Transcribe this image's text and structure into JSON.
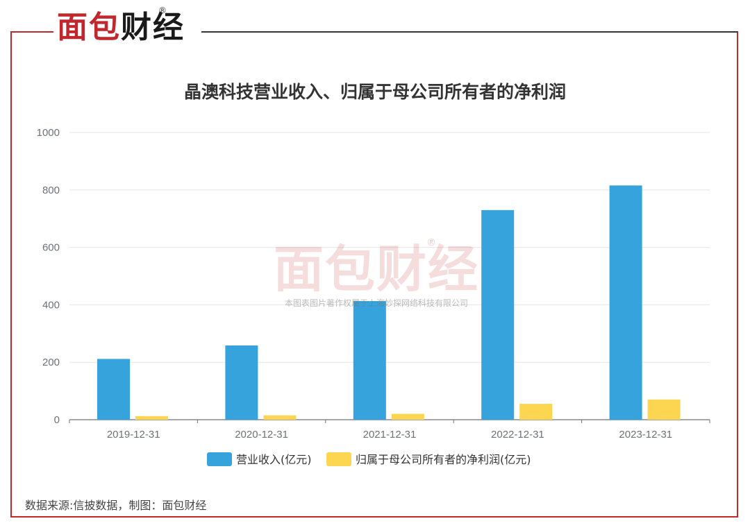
{
  "logo": {
    "text_part1": "面包",
    "text_part2": "财经",
    "reg": "®"
  },
  "watermark": {
    "logo": "面包财经",
    "reg": "®",
    "text": "本图表图片著作权属于上海妙探网络科技有限公司"
  },
  "source": "数据来源:信披数据，制图：面包财经",
  "colors": {
    "revenue": "#36a3dc",
    "profit": "#fdd651",
    "frame": "#c0282d"
  },
  "chart_data": {
    "type": "bar",
    "title": "晶澳科技营业收入、归属于母公司所有者的净利润",
    "categories": [
      "2019-12-31",
      "2020-12-31",
      "2021-12-31",
      "2022-12-31",
      "2023-12-31"
    ],
    "series": [
      {
        "name": "营业收入(亿元)",
        "values": [
          211.6,
          258.5,
          413.0,
          729.9,
          815.6
        ]
      },
      {
        "name": "归属于母公司所有者的净利润(亿元)",
        "values": [
          12.5,
          15.1,
          20.4,
          55.3,
          70.4
        ]
      }
    ],
    "ylim": [
      0,
      1000
    ],
    "yticks": [
      0,
      200,
      400,
      600,
      800,
      1000
    ],
    "grid": true,
    "legend": "bottom"
  }
}
